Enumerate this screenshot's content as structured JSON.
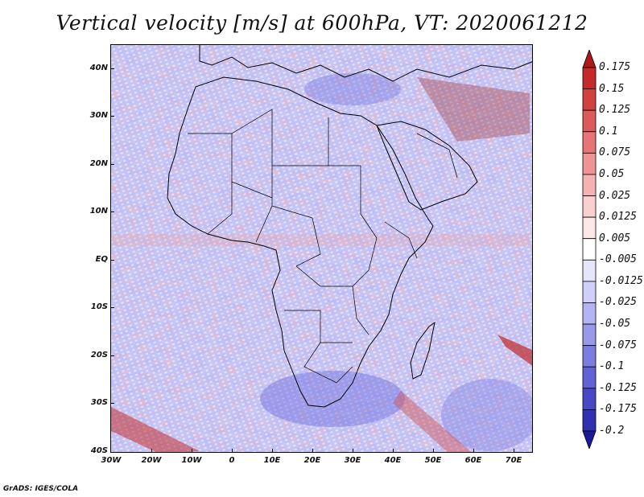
{
  "title": "Vertical velocity [m/s] at 600hPa, VT: 2020061212",
  "credit": "GrADS: IGES/COLA",
  "map": {
    "lat_labels": [
      "40N",
      "30N",
      "20N",
      "10N",
      "EQ",
      "10S",
      "20S",
      "30S",
      "40S"
    ],
    "lon_labels": [
      "30W",
      "20W",
      "10W",
      "0",
      "10E",
      "20E",
      "30E",
      "40E",
      "50E",
      "60E",
      "70E"
    ],
    "lat_range": [
      -40,
      45
    ],
    "lon_range": [
      -30,
      75
    ]
  },
  "legend": {
    "levels": [
      "0.175",
      "0.15",
      "0.125",
      "0.1",
      "0.075",
      "0.05",
      "0.025",
      "0.0125",
      "0.005",
      "-0.005",
      "-0.0125",
      "-0.025",
      "-0.05",
      "-0.075",
      "-0.1",
      "-0.125",
      "-0.175",
      "-0.2"
    ],
    "colors": [
      "#b01818",
      "#c42a2a",
      "#d24040",
      "#dd5a5a",
      "#e67575",
      "#ee9494",
      "#f4b2b2",
      "#f9d0d0",
      "#fde8e8",
      "#ffffff",
      "#e6e6fb",
      "#cfcff8",
      "#b4b4f2",
      "#9999ea",
      "#7d7de0",
      "#6262d4",
      "#4848c4",
      "#3030b0",
      "#1a1a98"
    ]
  },
  "colors": {
    "positive": "#d24040",
    "negative": "#5c5cd6",
    "background": "#ffffff"
  }
}
